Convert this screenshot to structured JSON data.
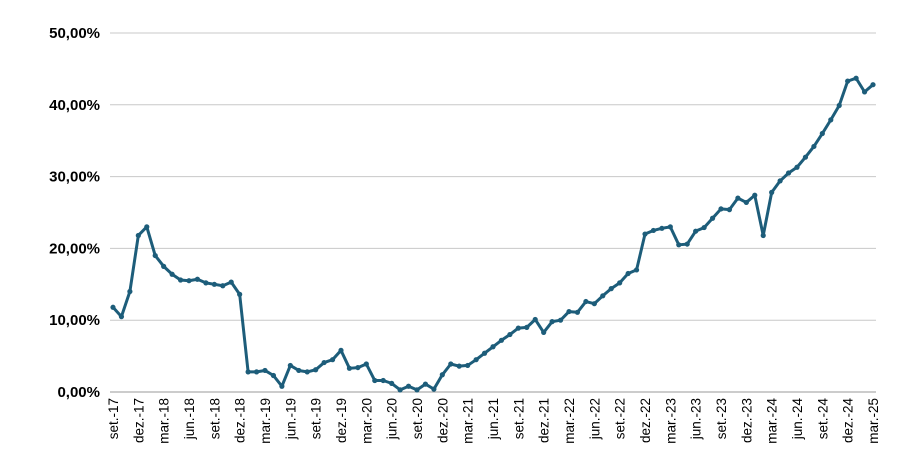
{
  "chart_data": {
    "type": "line",
    "title": "",
    "xlabel": "",
    "ylabel": "",
    "ylim": [
      0,
      50
    ],
    "yticks": [
      0,
      10,
      20,
      30,
      40,
      50
    ],
    "ytick_labels": [
      "0,00%",
      "10,00%",
      "20,00%",
      "30,00%",
      "40,00%",
      "50,00%"
    ],
    "grid": "horizontal",
    "legend": "none",
    "x_tick_labels": [
      "set.-17",
      "dez.-17",
      "mar.-18",
      "jun.-18",
      "set.-18",
      "dez.-18",
      "mar.-19",
      "jun.-19",
      "set.-19",
      "dez.-19",
      "mar.-20",
      "jun.-20",
      "set.-20",
      "dez.-20",
      "mar.-21",
      "jun.-21",
      "set.-21",
      "dez.-21",
      "mar.-22",
      "jun.-22",
      "set.-22",
      "dez.-22",
      "mar.-23",
      "jun.-23",
      "set.-23",
      "dez.-23",
      "mar.-24",
      "jun.-24",
      "set.-24",
      "dez.-24",
      "mar.-25"
    ],
    "series": [
      {
        "color": "#1d5d7a",
        "x": [
          "2017-09",
          "2017-10",
          "2017-11",
          "2017-12",
          "2018-01",
          "2018-02",
          "2018-03",
          "2018-04",
          "2018-05",
          "2018-06",
          "2018-07",
          "2018-08",
          "2018-09",
          "2018-10",
          "2018-11",
          "2018-12",
          "2019-01",
          "2019-02",
          "2019-03",
          "2019-04",
          "2019-05",
          "2019-06",
          "2019-07",
          "2019-08",
          "2019-09",
          "2019-10",
          "2019-11",
          "2019-12",
          "2020-01",
          "2020-02",
          "2020-03",
          "2020-04",
          "2020-05",
          "2020-06",
          "2020-07",
          "2020-08",
          "2020-09",
          "2020-10",
          "2020-11",
          "2020-12",
          "2021-01",
          "2021-02",
          "2021-03",
          "2021-04",
          "2021-05",
          "2021-06",
          "2021-07",
          "2021-08",
          "2021-09",
          "2021-10",
          "2021-11",
          "2021-12",
          "2022-01",
          "2022-02",
          "2022-03",
          "2022-04",
          "2022-05",
          "2022-06",
          "2022-07",
          "2022-08",
          "2022-09",
          "2022-10",
          "2022-11",
          "2022-12",
          "2023-01",
          "2023-02",
          "2023-03",
          "2023-04",
          "2023-05",
          "2023-06",
          "2023-07",
          "2023-08",
          "2023-09",
          "2023-10",
          "2023-11",
          "2023-12",
          "2024-01",
          "2024-02",
          "2024-03",
          "2024-04",
          "2024-05",
          "2024-06",
          "2024-07",
          "2024-08",
          "2024-09",
          "2024-10",
          "2024-11",
          "2024-12",
          "2025-01",
          "2025-02",
          "2025-03"
        ],
        "values": [
          11.8,
          10.5,
          14.0,
          21.8,
          23.0,
          19.0,
          17.5,
          16.4,
          15.6,
          15.5,
          15.7,
          15.2,
          15.0,
          14.8,
          15.3,
          13.6,
          2.8,
          2.8,
          3.0,
          2.3,
          0.8,
          3.7,
          3.0,
          2.8,
          3.1,
          4.1,
          4.5,
          5.8,
          3.3,
          3.4,
          3.9,
          1.6,
          1.6,
          1.2,
          0.3,
          0.8,
          0.3,
          1.1,
          0.4,
          2.4,
          3.9,
          3.6,
          3.7,
          4.5,
          5.4,
          6.3,
          7.2,
          8.0,
          8.9,
          9.0,
          10.1,
          8.3,
          9.8,
          10.0,
          11.2,
          11.1,
          12.6,
          12.3,
          13.4,
          14.4,
          15.2,
          16.5,
          17.0,
          22.0,
          22.5,
          22.8,
          23.0,
          20.5,
          20.6,
          22.4,
          22.9,
          24.2,
          25.5,
          25.4,
          27.0,
          26.4,
          27.4,
          21.8,
          27.8,
          29.4,
          30.5,
          31.3,
          32.7,
          34.2,
          36.0,
          37.9,
          39.9,
          43.3,
          43.7,
          41.8,
          42.8
        ]
      }
    ]
  }
}
